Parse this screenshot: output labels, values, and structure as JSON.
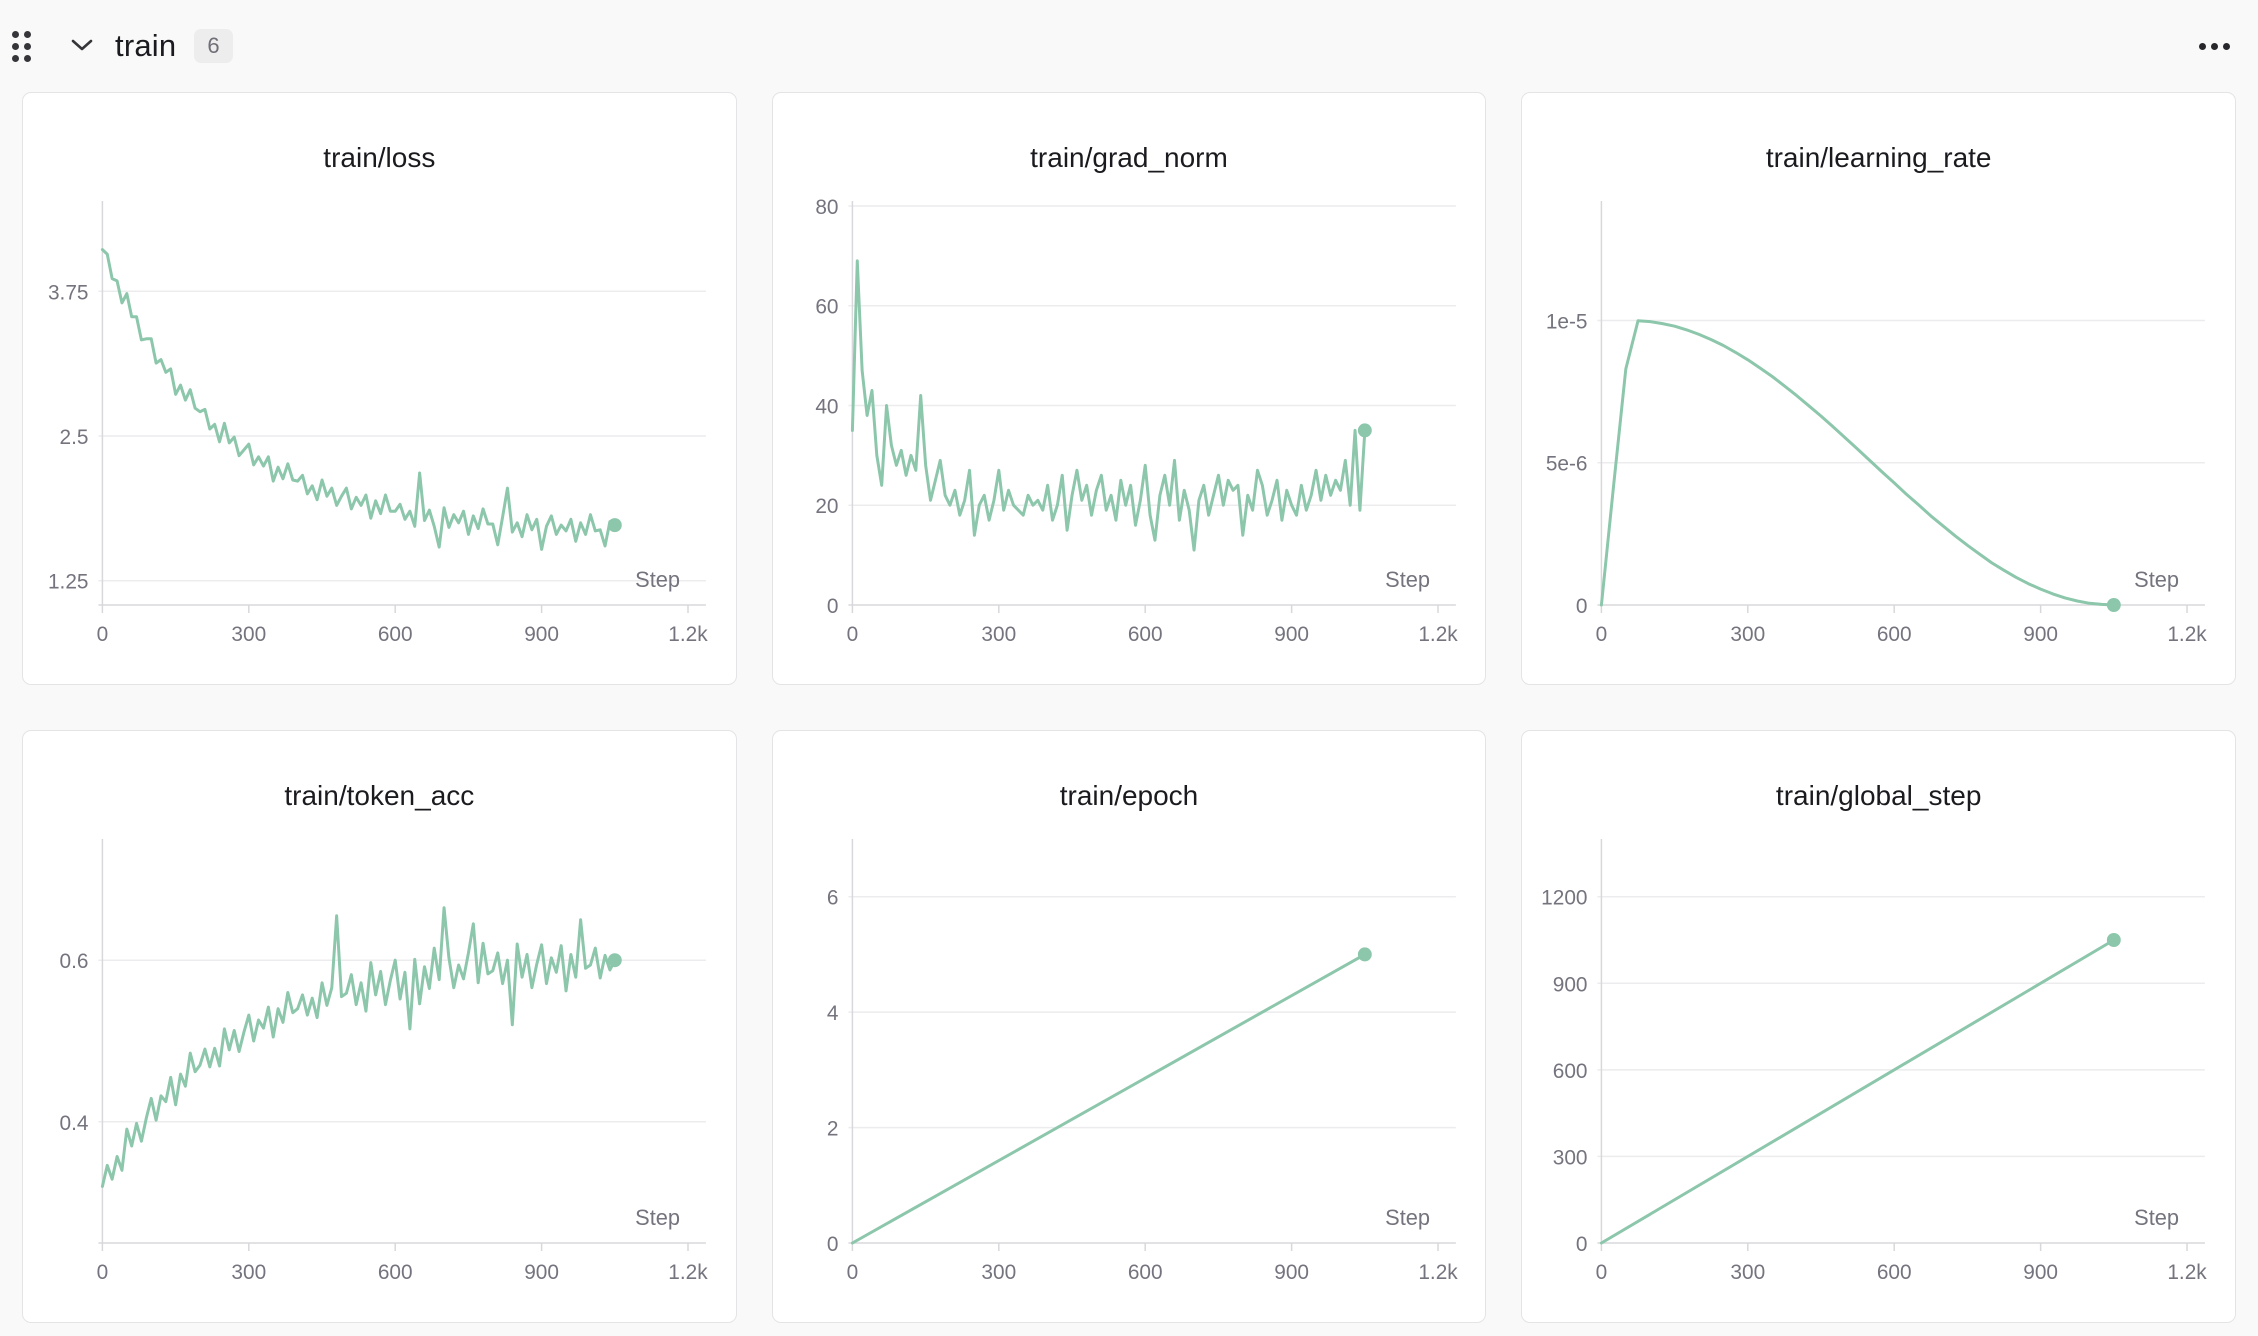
{
  "header": {
    "title": "train",
    "badge_count": "6"
  },
  "icons": {
    "drag_handle": "grid-dots-icon",
    "collapse": "chevron-down-icon",
    "more_menu": "ellipsis-icon"
  },
  "colors": {
    "series": "#8cc6ab",
    "page_bg": "#f9f9f9",
    "card_bg": "#ffffff",
    "card_border": "#e4e4e7",
    "grid": "#ececee",
    "axis": "#d8d8dc",
    "tick_text": "#74747e",
    "title_text": "#1b1b1f",
    "badge_bg": "#ededee",
    "badge_text": "#6f6f78"
  },
  "x_axis": {
    "title": "Step",
    "lim": [
      0,
      1200
    ],
    "ticks": [
      {
        "v": 0,
        "label": "0"
      },
      {
        "v": 300,
        "label": "300"
      },
      {
        "v": 600,
        "label": "600"
      },
      {
        "v": 900,
        "label": "900"
      },
      {
        "v": 1200,
        "label": "1.2k"
      }
    ]
  },
  "chart_data": [
    {
      "type": "line",
      "title": "train/loss",
      "xlabel": "Step",
      "legend": "none",
      "grid": "horizontal",
      "x_start": 0,
      "x_step": 10,
      "x_end": 1050,
      "ylim": [
        1.04,
        4.53
      ],
      "y_ticks": [
        {
          "v": 1.25,
          "label": "1.25"
        },
        {
          "v": 2.5,
          "label": "2.5"
        },
        {
          "v": 3.75,
          "label": "3.75"
        }
      ],
      "end_dot": true,
      "y": [
        4.11,
        4.07,
        3.86,
        3.84,
        3.65,
        3.73,
        3.53,
        3.53,
        3.33,
        3.34,
        3.34,
        3.13,
        3.16,
        3.05,
        3.08,
        2.86,
        2.94,
        2.81,
        2.9,
        2.74,
        2.71,
        2.73,
        2.56,
        2.6,
        2.45,
        2.61,
        2.44,
        2.49,
        2.33,
        2.38,
        2.43,
        2.25,
        2.32,
        2.24,
        2.32,
        2.11,
        2.23,
        2.13,
        2.26,
        2.12,
        2.11,
        2.16,
        2.0,
        2.07,
        1.95,
        2.12,
        1.98,
        2.05,
        1.9,
        1.98,
        2.05,
        1.87,
        1.97,
        1.9,
        1.99,
        1.79,
        1.94,
        1.83,
        1.99,
        1.85,
        1.85,
        1.91,
        1.78,
        1.85,
        1.72,
        2.18,
        1.77,
        1.86,
        1.72,
        1.54,
        1.88,
        1.71,
        1.82,
        1.75,
        1.85,
        1.65,
        1.81,
        1.7,
        1.87,
        1.74,
        1.74,
        1.56,
        1.8,
        2.05,
        1.67,
        1.75,
        1.63,
        1.82,
        1.69,
        1.78,
        1.52,
        1.72,
        1.81,
        1.65,
        1.73,
        1.68,
        1.78,
        1.59,
        1.75,
        1.65,
        1.82,
        1.68,
        1.69,
        1.55,
        1.76,
        1.73
      ]
    },
    {
      "type": "line",
      "title": "train/grad_norm",
      "xlabel": "Step",
      "legend": "none",
      "grid": "horizontal",
      "x_start": 0,
      "x_step": 10,
      "x_end": 1050,
      "ylim": [
        0,
        81
      ],
      "y_ticks": [
        {
          "v": 0,
          "label": "0"
        },
        {
          "v": 20,
          "label": "20"
        },
        {
          "v": 40,
          "label": "40"
        },
        {
          "v": 60,
          "label": "60"
        },
        {
          "v": 80,
          "label": "80"
        }
      ],
      "end_dot": true,
      "y": [
        35,
        69,
        47,
        38,
        43,
        30,
        24,
        40,
        32,
        28,
        31,
        26,
        30,
        27,
        42,
        28,
        21,
        25,
        29,
        22,
        20,
        23,
        18,
        21,
        27,
        14,
        20,
        22,
        17,
        21,
        27,
        19,
        23,
        20,
        19,
        18,
        22,
        20,
        21,
        19,
        24,
        17,
        20,
        26,
        15,
        22,
        27,
        21,
        24,
        18,
        23,
        26,
        19,
        22,
        17,
        25,
        20,
        24,
        16,
        21,
        28,
        18,
        13,
        22,
        26,
        20,
        29,
        17,
        23,
        19,
        11,
        21,
        24,
        18,
        22,
        26,
        20,
        25,
        23,
        24,
        14,
        22,
        19,
        27,
        24,
        18,
        21,
        25,
        17,
        23,
        20,
        18,
        24,
        19,
        22,
        27,
        21,
        26,
        22,
        25,
        23,
        29,
        20,
        35,
        19,
        35
      ]
    },
    {
      "type": "line",
      "title": "train/learning_rate",
      "xlabel": "Step",
      "legend": "none",
      "grid": "horizontal",
      "note_units": "y values in 1e-6",
      "x_start": 0,
      "x_step": 25,
      "x_end": 1050,
      "ylim": [
        0,
        14.2
      ],
      "y_ticks": [
        {
          "v": 0,
          "label": "0"
        },
        {
          "v": 5,
          "label": "5e-6"
        },
        {
          "v": 10,
          "label": "1e-5"
        }
      ],
      "end_dot": true,
      "y": [
        0,
        4.2,
        8.3,
        9.99,
        9.96,
        9.89,
        9.8,
        9.67,
        9.51,
        9.33,
        9.12,
        8.88,
        8.62,
        8.33,
        8.03,
        7.7,
        7.36,
        7.0,
        6.64,
        6.26,
        5.87,
        5.48,
        5.08,
        4.68,
        4.29,
        3.89,
        3.52,
        3.13,
        2.78,
        2.43,
        2.1,
        1.79,
        1.48,
        1.22,
        0.97,
        0.75,
        0.56,
        0.39,
        0.25,
        0.14,
        0.06,
        0.02,
        0
      ]
    },
    {
      "type": "line",
      "title": "train/token_acc",
      "xlabel": "Step",
      "legend": "none",
      "grid": "horizontal",
      "x_start": 0,
      "x_step": 10,
      "x_end": 1050,
      "ylim": [
        0.25,
        0.75
      ],
      "y_ticks": [
        {
          "v": 0.4,
          "label": "0.4"
        },
        {
          "v": 0.6,
          "label": "0.6"
        }
      ],
      "end_dot": true,
      "y": [
        0.32,
        0.346,
        0.329,
        0.357,
        0.34,
        0.391,
        0.37,
        0.398,
        0.376,
        0.405,
        0.429,
        0.402,
        0.432,
        0.425,
        0.455,
        0.421,
        0.459,
        0.444,
        0.485,
        0.462,
        0.47,
        0.49,
        0.468,
        0.491,
        0.469,
        0.515,
        0.489,
        0.513,
        0.487,
        0.511,
        0.532,
        0.5,
        0.526,
        0.516,
        0.542,
        0.505,
        0.54,
        0.523,
        0.56,
        0.535,
        0.54,
        0.557,
        0.532,
        0.553,
        0.529,
        0.572,
        0.544,
        0.566,
        0.655,
        0.555,
        0.559,
        0.582,
        0.545,
        0.572,
        0.537,
        0.597,
        0.557,
        0.586,
        0.545,
        0.575,
        0.6,
        0.552,
        0.585,
        0.515,
        0.601,
        0.546,
        0.592,
        0.565,
        0.615,
        0.576,
        0.665,
        0.603,
        0.566,
        0.594,
        0.577,
        0.609,
        0.645,
        0.572,
        0.621,
        0.583,
        0.587,
        0.609,
        0.571,
        0.6,
        0.52,
        0.62,
        0.579,
        0.607,
        0.566,
        0.595,
        0.619,
        0.571,
        0.603,
        0.585,
        0.618,
        0.562,
        0.607,
        0.579,
        0.65,
        0.59,
        0.594,
        0.615,
        0.578,
        0.606,
        0.588,
        0.6
      ]
    },
    {
      "type": "line",
      "title": "train/epoch",
      "xlabel": "Step",
      "legend": "none",
      "grid": "horizontal",
      "x_start": 0,
      "x_step": 1050,
      "x_end": 1050,
      "ylim": [
        0,
        7
      ],
      "y_ticks": [
        {
          "v": 0,
          "label": "0"
        },
        {
          "v": 2,
          "label": "2"
        },
        {
          "v": 4,
          "label": "4"
        },
        {
          "v": 6,
          "label": "6"
        }
      ],
      "end_dot": true,
      "y": [
        0,
        5
      ]
    },
    {
      "type": "line",
      "title": "train/global_step",
      "xlabel": "Step",
      "legend": "none",
      "grid": "horizontal",
      "x_start": 0,
      "x_step": 1050,
      "x_end": 1050,
      "ylim": [
        0,
        1400
      ],
      "y_ticks": [
        {
          "v": 0,
          "label": "0"
        },
        {
          "v": 300,
          "label": "300"
        },
        {
          "v": 600,
          "label": "600"
        },
        {
          "v": 900,
          "label": "900"
        },
        {
          "v": 1200,
          "label": "1200"
        }
      ],
      "end_dot": true,
      "y": [
        0,
        1050
      ]
    }
  ]
}
